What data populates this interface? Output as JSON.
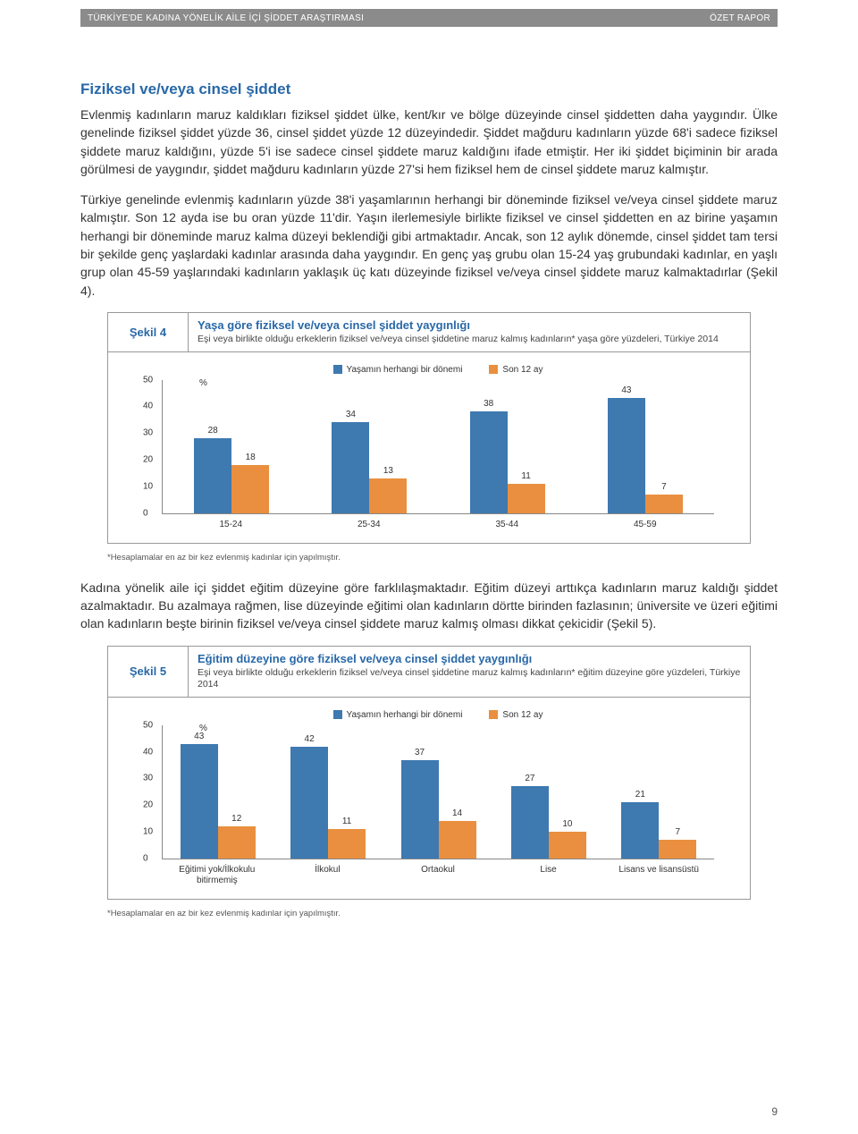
{
  "header": {
    "left": "TÜRKİYE'DE KADINA YÖNELİK AİLE İÇİ ŞİDDET ARAŞTIRMASI",
    "right": "ÖZET RAPOR"
  },
  "section_title": "Fiziksel ve/veya cinsel şiddet",
  "para1": "Evlenmiş kadınların maruz kaldıkları fiziksel şiddet ülke, kent/kır ve bölge düzeyinde cinsel şiddetten daha yaygındır. Ülke genelinde fiziksel şiddet yüzde 36, cinsel şiddet yüzde 12 düzeyindedir. Şiddet mağduru kadınların yüzde 68'i sadece fiziksel şiddete maruz kaldığını, yüzde 5'i ise sadece cinsel şiddete maruz kaldığını ifade etmiştir. Her iki şiddet biçiminin bir arada görülmesi de yaygındır, şiddet mağduru kadınların yüzde 27'si hem fiziksel hem de cinsel şiddete maruz kalmıştır.",
  "para2": "Türkiye genelinde evlenmiş kadınların yüzde 38'i yaşamlarının herhangi bir döneminde fiziksel ve/veya cinsel şiddete maruz kalmıştır. Son 12 ayda ise bu oran yüzde 11'dir. Yaşın ilerlemesiyle birlikte fiziksel ve cinsel şiddetten en az birine yaşamın herhangi bir döneminde maruz kalma düzeyi beklendiği gibi artmaktadır. Ancak, son 12 aylık dönemde, cinsel şiddet tam tersi bir şekilde genç yaşlardaki kadınlar arasında daha yaygındır. En genç yaş grubu olan 15-24 yaş grubundaki kadınlar, en yaşlı grup olan 45-59 yaşlarındaki kadınların yaklaşık üç katı düzeyinde fiziksel ve/veya cinsel şiddete maruz kalmaktadırlar (Şekil 4).",
  "para3": "Kadına yönelik aile içi şiddet eğitim düzeyine göre farklılaşmaktadır. Eğitim düzeyi arttıkça kadınların maruz kaldığı şiddet azalmaktadır. Bu azalmaya rağmen, lise düzeyinde eğitimi olan kadınların dörtte birinden fazlasının; üniversite ve üzeri eğitimi olan kadınların beşte birinin fiziksel ve/veya cinsel şiddete maruz kalmış olması dikkat çekicidir (Şekil 5).",
  "colors": {
    "series1": "#3e79b0",
    "series2": "#e98f3f"
  },
  "legend": {
    "s1": "Yaşamın herhangi bir dönemi",
    "s2": "Son 12 ay"
  },
  "yaxis_pct": "%",
  "fig4": {
    "label": "Şekil 4",
    "title": "Yaşa göre fiziksel ve/veya cinsel şiddet yaygınlığı",
    "sub": "Eşi veya birlikte olduğu erkeklerin fiziksel ve/veya cinsel şiddetine maruz kalmış kadınların* yaşa göre yüzdeleri, Türkiye 2014",
    "ymax": 50,
    "ystep": 10,
    "categories": [
      "15-24",
      "25-34",
      "35-44",
      "45-59"
    ],
    "series1": [
      28,
      34,
      38,
      43
    ],
    "series2": [
      18,
      13,
      11,
      7
    ],
    "footnote": "*Hesaplamalar en az bir kez evlenmiş kadınlar için yapılmıştır."
  },
  "fig5": {
    "label": "Şekil 5",
    "title": "Eğitim düzeyine göre fiziksel ve/veya cinsel şiddet yaygınlığı",
    "sub": "Eşi veya birlikte olduğu erkeklerin fiziksel ve/veya cinsel şiddetine maruz kalmış kadınların* eğitim düzeyine göre yüzdeleri, Türkiye 2014",
    "ymax": 50,
    "ystep": 10,
    "categories": [
      "Eğitimi yok/İlkokulu bitirmemiş",
      "İlkokul",
      "Ortaokul",
      "Lise",
      "Lisans ve lisansüstü"
    ],
    "series1": [
      43,
      42,
      37,
      27,
      21
    ],
    "series2": [
      12,
      11,
      14,
      10,
      7
    ],
    "footnote": "*Hesaplamalar en az bir kez evlenmiş kadınlar için yapılmıştır."
  },
  "page_number": "9"
}
